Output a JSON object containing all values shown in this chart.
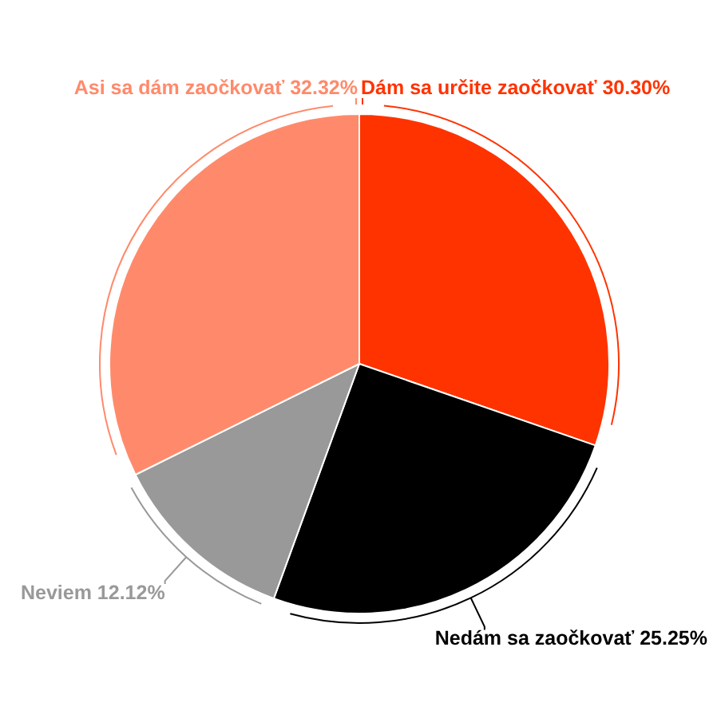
{
  "chart_data": {
    "type": "pie",
    "categories": [
      "Dám sa určite zaočkovať",
      "Nedám sa zaočkovať",
      "Neviem",
      "Asi sa dám zaočkovať"
    ],
    "values": [
      30.3,
      25.25,
      12.12,
      32.32
    ],
    "value_labels": [
      "30.30%",
      "25.25%",
      "12.12%",
      "32.32%"
    ],
    "colors": [
      "#ff3300",
      "#000000",
      "#999999",
      "#ff8a6b"
    ],
    "legend": false
  }
}
